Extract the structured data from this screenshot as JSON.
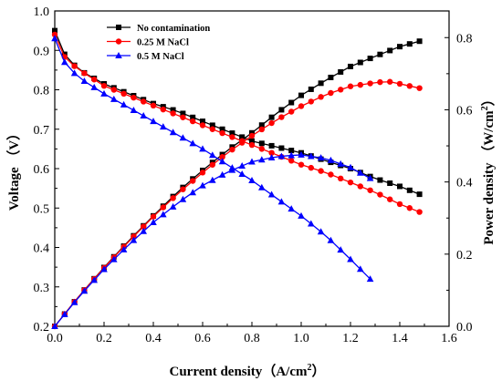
{
  "chart_data": {
    "type": "line",
    "xlabel_main": "Current density",
    "xlabel_unit": "（A/cm",
    "xlabel_sup": "2",
    "xlabel_close": "）",
    "ylabel_left": "Voltage （V）",
    "ylabel_right_main": "Power density （W/cm",
    "ylabel_right_sup": "2",
    "ylabel_right_close": "）",
    "xlim": [
      0.0,
      1.6
    ],
    "ylim_left": [
      0.2,
      1.0
    ],
    "ylim_right": [
      0.0,
      0.8739
    ],
    "x_ticks": [
      "0.0",
      "0.2",
      "0.4",
      "0.6",
      "0.8",
      "1.0",
      "1.2",
      "1.4",
      "1.6"
    ],
    "y_left_ticks": [
      "0.2",
      "0.3",
      "0.4",
      "0.5",
      "0.6",
      "0.7",
      "0.8",
      "0.9",
      "1.0"
    ],
    "y_right_ticks": [
      "0.0",
      "0.2",
      "0.4",
      "0.6",
      "0.8"
    ],
    "grid": false,
    "legend_position": "top-left",
    "series": [
      {
        "name": "No contamination",
        "color": "#000000",
        "marker": "square",
        "x_max": 1.48,
        "voltage": [
          [
            0.0,
            0.95
          ],
          [
            0.02,
            0.91
          ],
          [
            0.05,
            0.88
          ],
          [
            0.1,
            0.85
          ],
          [
            0.2,
            0.815
          ],
          [
            0.3,
            0.79
          ],
          [
            0.4,
            0.765
          ],
          [
            0.5,
            0.745
          ],
          [
            0.6,
            0.72
          ],
          [
            0.7,
            0.695
          ],
          [
            0.8,
            0.67
          ],
          [
            0.9,
            0.655
          ],
          [
            1.0,
            0.64
          ],
          [
            1.1,
            0.62
          ],
          [
            1.2,
            0.6
          ],
          [
            1.3,
            0.575
          ],
          [
            1.4,
            0.555
          ],
          [
            1.48,
            0.535
          ]
        ],
        "power": [
          [
            0.0,
            0.0
          ],
          [
            0.1,
            0.085
          ],
          [
            0.2,
            0.163
          ],
          [
            0.3,
            0.237
          ],
          [
            0.4,
            0.306
          ],
          [
            0.5,
            0.373
          ],
          [
            0.6,
            0.432
          ],
          [
            0.7,
            0.487
          ],
          [
            0.8,
            0.536
          ],
          [
            0.9,
            0.59
          ],
          [
            1.0,
            0.64
          ],
          [
            1.1,
            0.682
          ],
          [
            1.2,
            0.72
          ],
          [
            1.3,
            0.748
          ],
          [
            1.4,
            0.775
          ],
          [
            1.48,
            0.79
          ]
        ]
      },
      {
        "name": "0.25 M NaCl",
        "color": "#ff0000",
        "marker": "circle",
        "x_max": 1.48,
        "voltage": [
          [
            0.0,
            0.94
          ],
          [
            0.02,
            0.9
          ],
          [
            0.05,
            0.875
          ],
          [
            0.1,
            0.85
          ],
          [
            0.2,
            0.81
          ],
          [
            0.3,
            0.785
          ],
          [
            0.4,
            0.76
          ],
          [
            0.5,
            0.735
          ],
          [
            0.6,
            0.71
          ],
          [
            0.7,
            0.685
          ],
          [
            0.8,
            0.66
          ],
          [
            0.9,
            0.635
          ],
          [
            1.0,
            0.61
          ],
          [
            1.1,
            0.59
          ],
          [
            1.2,
            0.565
          ],
          [
            1.3,
            0.54
          ],
          [
            1.4,
            0.51
          ],
          [
            1.48,
            0.49
          ]
        ],
        "power": [
          [
            0.0,
            0.0
          ],
          [
            0.1,
            0.085
          ],
          [
            0.2,
            0.162
          ],
          [
            0.3,
            0.235
          ],
          [
            0.4,
            0.304
          ],
          [
            0.5,
            0.368
          ],
          [
            0.6,
            0.426
          ],
          [
            0.7,
            0.48
          ],
          [
            0.8,
            0.528
          ],
          [
            0.9,
            0.572
          ],
          [
            1.0,
            0.61
          ],
          [
            1.1,
            0.642
          ],
          [
            1.2,
            0.665
          ],
          [
            1.3,
            0.675
          ],
          [
            1.35,
            0.679
          ],
          [
            1.4,
            0.672
          ],
          [
            1.48,
            0.66
          ]
        ]
      },
      {
        "name": "0.5 M NaCl",
        "color": "#0000ff",
        "marker": "triangle",
        "x_max": 1.28,
        "voltage": [
          [
            0.0,
            0.93
          ],
          [
            0.02,
            0.89
          ],
          [
            0.05,
            0.86
          ],
          [
            0.1,
            0.83
          ],
          [
            0.2,
            0.79
          ],
          [
            0.3,
            0.755
          ],
          [
            0.4,
            0.72
          ],
          [
            0.5,
            0.685
          ],
          [
            0.6,
            0.65
          ],
          [
            0.7,
            0.61
          ],
          [
            0.8,
            0.57
          ],
          [
            0.9,
            0.525
          ],
          [
            1.0,
            0.48
          ],
          [
            1.1,
            0.43
          ],
          [
            1.2,
            0.37
          ],
          [
            1.28,
            0.32
          ]
        ],
        "power": [
          [
            0.0,
            0.0
          ],
          [
            0.1,
            0.083
          ],
          [
            0.2,
            0.158
          ],
          [
            0.3,
            0.226
          ],
          [
            0.4,
            0.288
          ],
          [
            0.5,
            0.342
          ],
          [
            0.6,
            0.39
          ],
          [
            0.7,
            0.427
          ],
          [
            0.8,
            0.456
          ],
          [
            0.9,
            0.47
          ],
          [
            0.95,
            0.473
          ],
          [
            1.0,
            0.475
          ],
          [
            1.1,
            0.465
          ],
          [
            1.2,
            0.44
          ],
          [
            1.28,
            0.41
          ]
        ]
      }
    ]
  }
}
